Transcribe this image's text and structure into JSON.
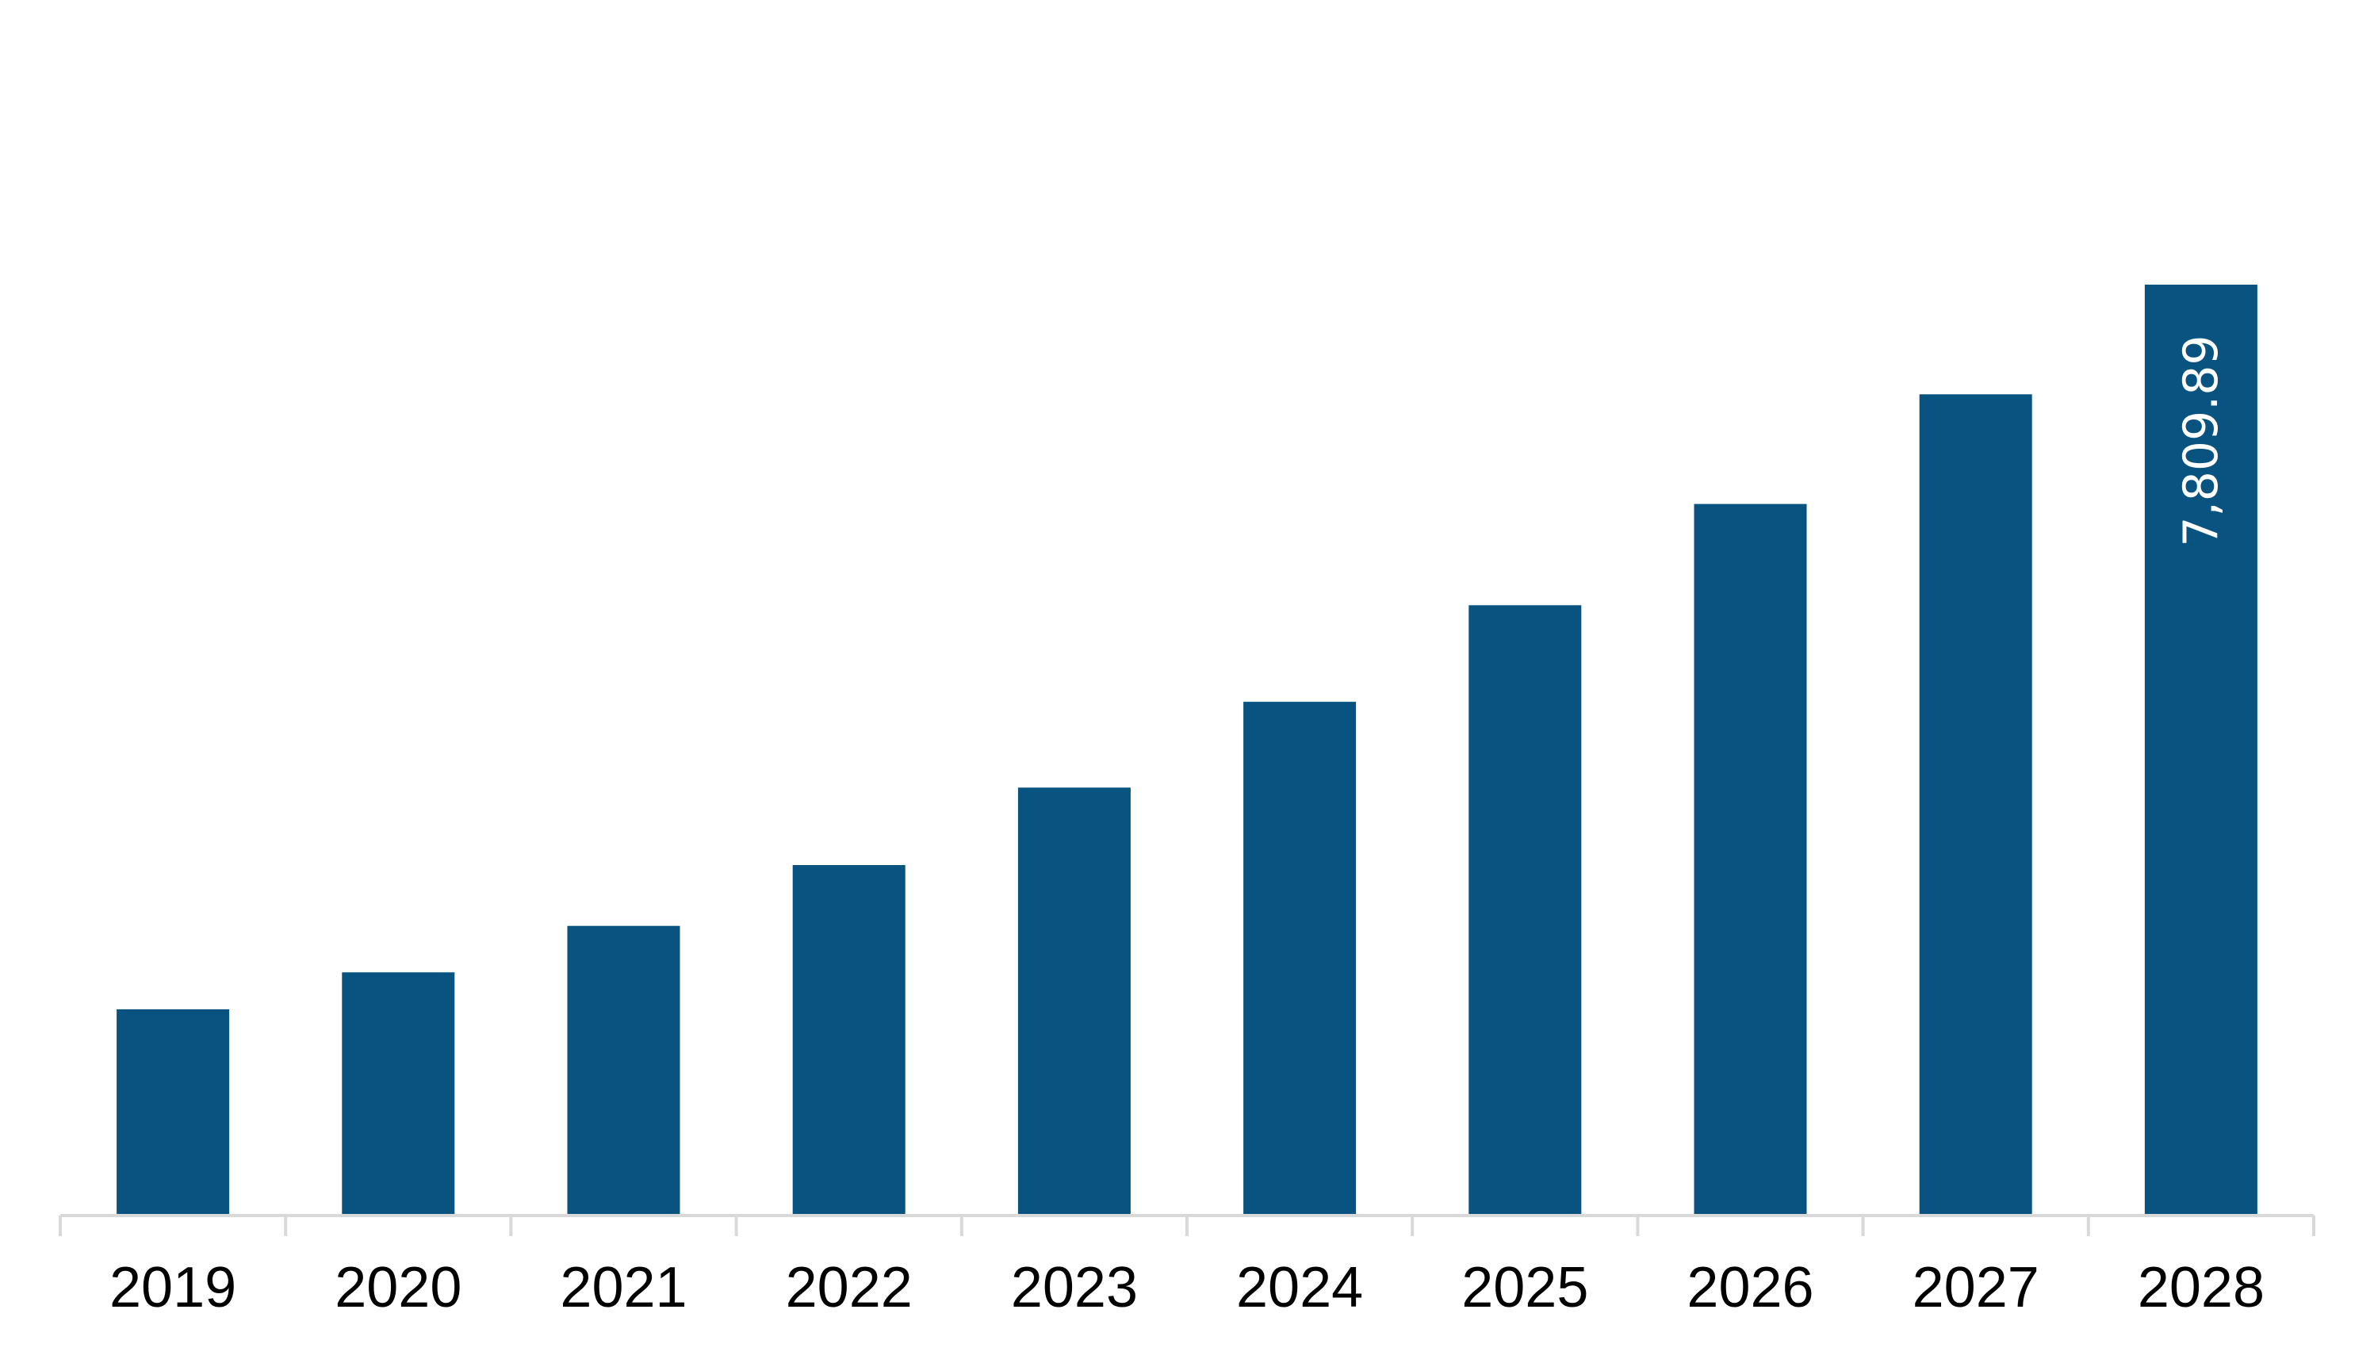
{
  "chart_data": {
    "type": "bar",
    "title": "",
    "xlabel": "",
    "ylabel": "",
    "categories": [
      "2019",
      "2020",
      "2021",
      "2022",
      "2023",
      "2024",
      "2025",
      "2026",
      "2027",
      "2028"
    ],
    "values": [
      1730,
      2040,
      2430,
      2940,
      3590,
      4310,
      5120,
      5970,
      6890,
      7809.89
    ],
    "data_labels": [
      {
        "index": 9,
        "text": "7,809.89",
        "orientation": "vertical"
      }
    ],
    "ylim": [
      0,
      9200
    ],
    "grid": false,
    "legend": "none",
    "colors": {
      "bar": "#08537f",
      "axis": "#d9d9d9",
      "tick_text": "#000000",
      "data_label_text": "#ffffff"
    }
  }
}
